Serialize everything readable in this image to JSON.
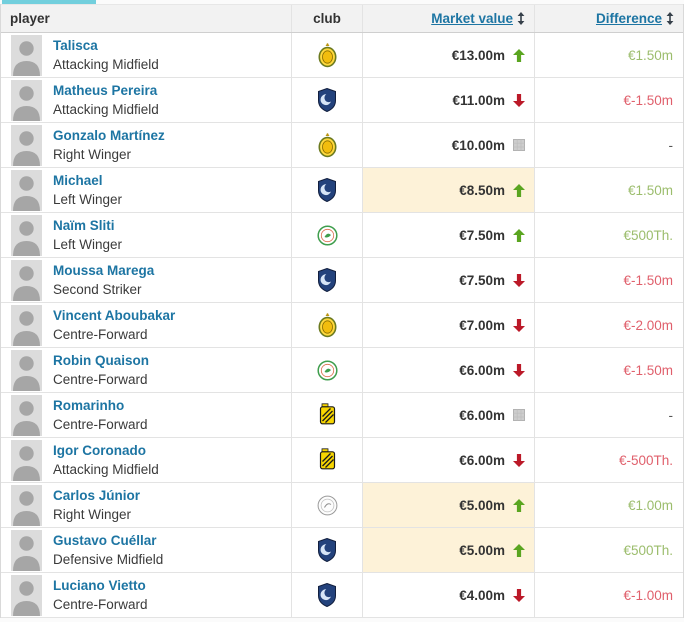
{
  "active_tab": {
    "indicator_color": "#72cfdd"
  },
  "icons": {
    "sort": "up-down-sort-arrows",
    "trend_up": "green-up-arrow",
    "trend_down": "red-down-arrow",
    "trend_none": "grey-square-no-change"
  },
  "colors": {
    "accent_tab": "#72cfdd",
    "link_blue": "#1d75a3",
    "value_up_green": "#5aa520",
    "value_down_red": "#bb1928",
    "diff_positive_green": "#9cbd6d",
    "diff_negative_red": "#e0606c",
    "highlight_yellow": "#fdf2d8"
  },
  "table": {
    "headers": {
      "player": "player",
      "club": "club",
      "market_value": "Market value",
      "difference": "Difference"
    },
    "rows": [
      {
        "player": {
          "name": "Talisca",
          "position": "Attacking Midfield"
        },
        "club": "al-nassr",
        "market_value": "€13.00m",
        "trend": "up",
        "highlighted": false,
        "difference": "€1.50m",
        "diff_color": "positive"
      },
      {
        "player": {
          "name": "Matheus Pereira",
          "position": "Attacking Midfield"
        },
        "club": "al-hilal",
        "market_value": "€11.00m",
        "trend": "down",
        "highlighted": false,
        "difference": "€-1.50m",
        "diff_color": "negative"
      },
      {
        "player": {
          "name": "Gonzalo Martínez",
          "position": "Right Winger"
        },
        "club": "al-nassr",
        "market_value": "€10.00m",
        "trend": "none",
        "highlighted": false,
        "difference": "-",
        "diff_color": "neutral"
      },
      {
        "player": {
          "name": "Michael",
          "position": "Left Winger"
        },
        "club": "al-hilal",
        "market_value": "€8.50m",
        "trend": "up",
        "highlighted": true,
        "difference": "€1.50m",
        "diff_color": "positive"
      },
      {
        "player": {
          "name": "Naïm Sliti",
          "position": "Left Winger"
        },
        "club": "al-ettifaq",
        "market_value": "€7.50m",
        "trend": "up",
        "highlighted": false,
        "difference": "€500Th.",
        "diff_color": "positive"
      },
      {
        "player": {
          "name": "Moussa Marega",
          "position": "Second Striker"
        },
        "club": "al-hilal",
        "market_value": "€7.50m",
        "trend": "down",
        "highlighted": false,
        "difference": "€-1.50m",
        "diff_color": "negative"
      },
      {
        "player": {
          "name": "Vincent Aboubakar",
          "position": "Centre-Forward"
        },
        "club": "al-nassr",
        "market_value": "€7.00m",
        "trend": "down",
        "highlighted": false,
        "difference": "€-2.00m",
        "diff_color": "negative"
      },
      {
        "player": {
          "name": "Robin Quaison",
          "position": "Centre-Forward"
        },
        "club": "al-ettifaq",
        "market_value": "€6.00m",
        "trend": "down",
        "highlighted": false,
        "difference": "€-1.50m",
        "diff_color": "negative"
      },
      {
        "player": {
          "name": "Romarinho",
          "position": "Centre-Forward"
        },
        "club": "al-ittihad",
        "market_value": "€6.00m",
        "trend": "none",
        "highlighted": false,
        "difference": "-",
        "diff_color": "neutral"
      },
      {
        "player": {
          "name": "Igor Coronado",
          "position": "Attacking Midfield"
        },
        "club": "al-ittihad",
        "market_value": "€6.00m",
        "trend": "down",
        "highlighted": false,
        "difference": "€-500Th.",
        "diff_color": "negative"
      },
      {
        "player": {
          "name": "Carlos Júnior",
          "position": "Right Winger"
        },
        "club": "al-shabab",
        "market_value": "€5.00m",
        "trend": "up",
        "highlighted": true,
        "difference": "€1.00m",
        "diff_color": "positive"
      },
      {
        "player": {
          "name": "Gustavo Cuéllar",
          "position": "Defensive Midfield"
        },
        "club": "al-hilal",
        "market_value": "€5.00m",
        "trend": "up",
        "highlighted": true,
        "difference": "€500Th.",
        "diff_color": "positive"
      },
      {
        "player": {
          "name": "Luciano Vietto",
          "position": "Centre-Forward"
        },
        "club": "al-hilal",
        "market_value": "€4.00m",
        "trend": "down",
        "highlighted": false,
        "difference": "€-1.00m",
        "diff_color": "negative"
      }
    ]
  }
}
